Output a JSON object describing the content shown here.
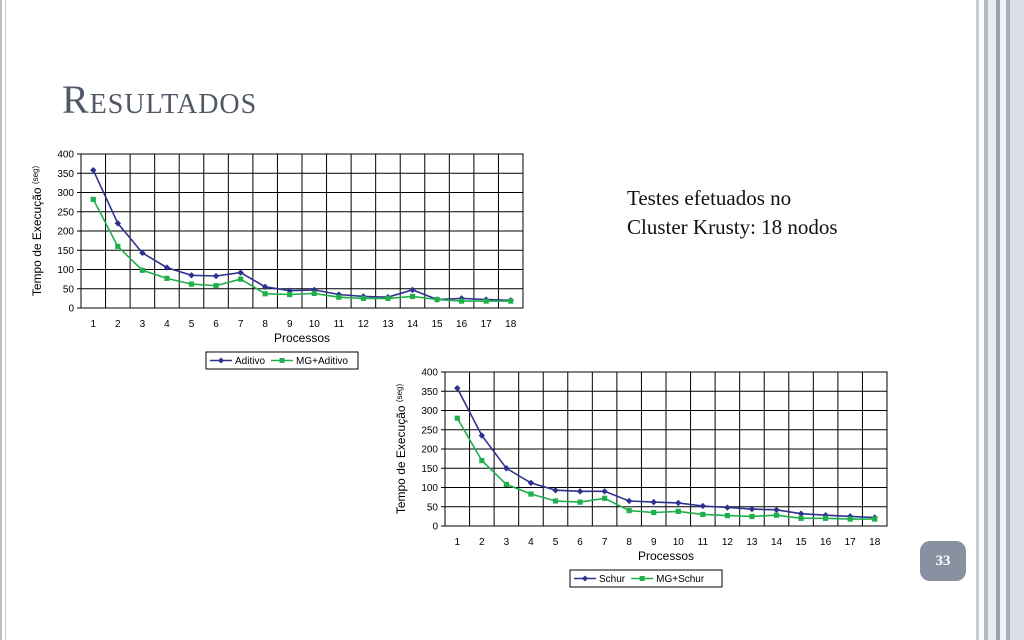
{
  "slide": {
    "title": "Resultados",
    "text_lines": [
      "Testes efetuados no",
      "Cluster Krusty: 18 nodos"
    ],
    "page_number": "33"
  },
  "colors": {
    "series_a": "#2e3190",
    "series_b": "#1fb04b",
    "badge": "#8890a2",
    "title": "#505865"
  },
  "chart_data": [
    {
      "type": "line",
      "ylabel": "Tempo de Execução",
      "ylabel_unit": "(seg)",
      "xlabel": "Processos",
      "ylim": [
        0,
        400
      ],
      "yticks": [
        "0",
        "50",
        "100",
        "150",
        "200",
        "250",
        "300",
        "350",
        "400"
      ],
      "categories": [
        "1",
        "2",
        "3",
        "4",
        "5",
        "6",
        "7",
        "8",
        "9",
        "10",
        "11",
        "12",
        "13",
        "14",
        "15",
        "16",
        "17",
        "18"
      ],
      "grid": true,
      "legend": "bottom",
      "series": [
        {
          "name": "Aditivo",
          "marker": "diamond",
          "values": [
            358,
            220,
            143,
            105,
            85,
            83,
            92,
            55,
            45,
            47,
            35,
            30,
            28,
            47,
            22,
            25,
            22,
            20
          ]
        },
        {
          "name": "MG+Aditivo",
          "marker": "square",
          "values": [
            282,
            160,
            98,
            77,
            62,
            58,
            75,
            37,
            35,
            38,
            28,
            25,
            25,
            30,
            22,
            18,
            18,
            18
          ]
        }
      ]
    },
    {
      "type": "line",
      "ylabel": "Tempo de Execução",
      "ylabel_unit": "(seg)",
      "xlabel": "Processos",
      "ylim": [
        0,
        400
      ],
      "yticks": [
        "0",
        "50",
        "100",
        "150",
        "200",
        "250",
        "300",
        "350",
        "400"
      ],
      "categories": [
        "1",
        "2",
        "3",
        "4",
        "5",
        "6",
        "7",
        "8",
        "9",
        "10",
        "11",
        "12",
        "13",
        "14",
        "15",
        "16",
        "17",
        "18"
      ],
      "grid": true,
      "legend": "bottom",
      "series": [
        {
          "name": "Schur",
          "marker": "diamond",
          "values": [
            358,
            235,
            150,
            112,
            93,
            90,
            90,
            65,
            62,
            60,
            52,
            48,
            44,
            42,
            32,
            28,
            25,
            22
          ]
        },
        {
          "name": "MG+Schur",
          "marker": "square",
          "values": [
            280,
            170,
            108,
            83,
            65,
            62,
            72,
            40,
            35,
            38,
            30,
            27,
            25,
            28,
            20,
            20,
            18,
            18
          ]
        }
      ]
    }
  ]
}
